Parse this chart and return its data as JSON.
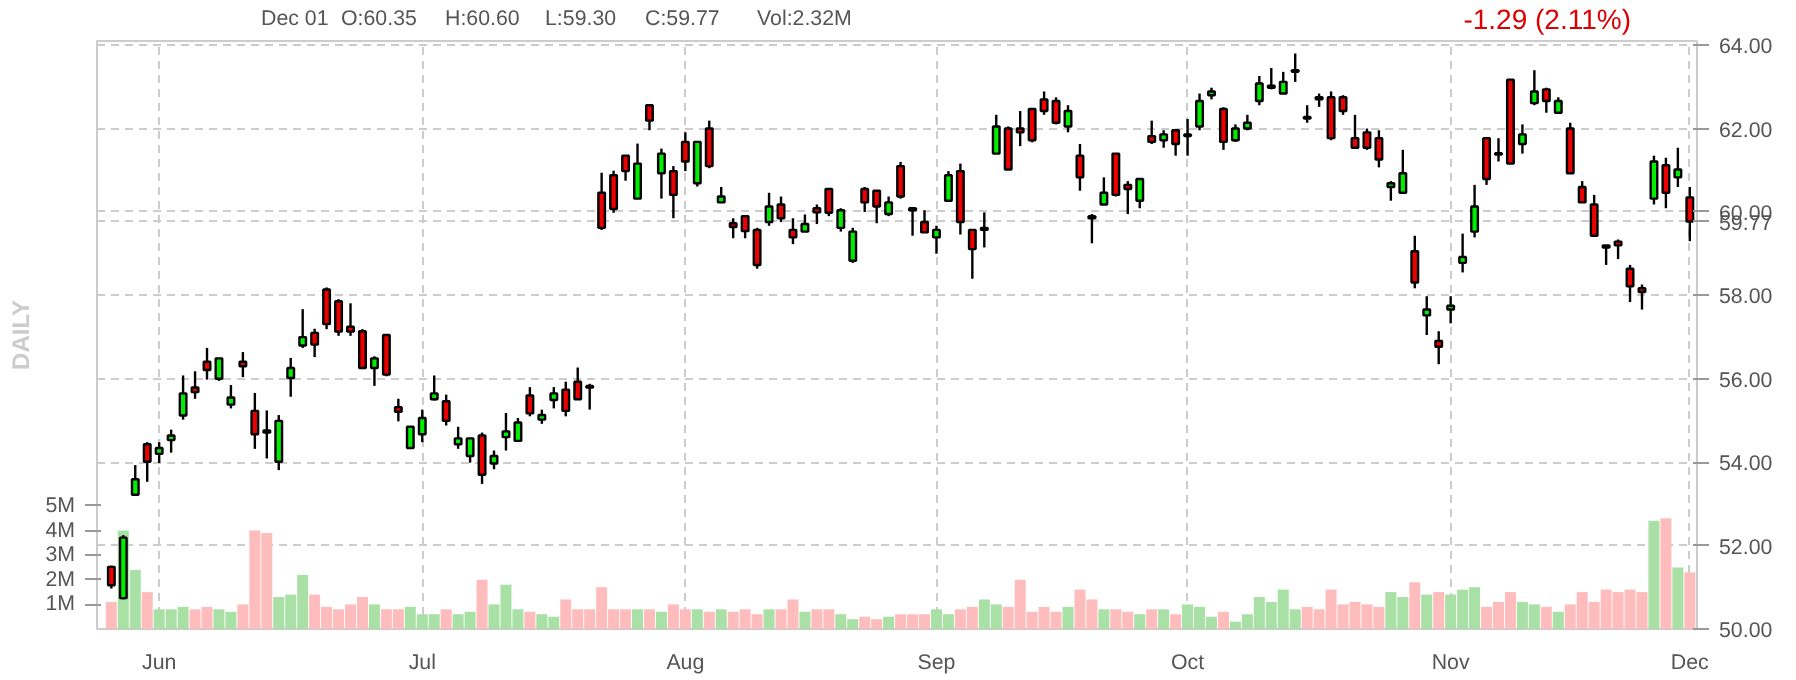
{
  "chart_data": {
    "type": "candlestick",
    "grid": true,
    "annotations": [
      "Dec 01",
      "O:60.35",
      "H:60.60",
      "L:59.30",
      "C:59.77",
      "Vol:2.32M",
      "-1.29 (2.11%)",
      "DAILY"
    ],
    "categories": [
      null,
      null,
      null,
      null,
      "Jun",
      null,
      null,
      null,
      null,
      null,
      null,
      null,
      null,
      null,
      null,
      null,
      null,
      null,
      null,
      null,
      null,
      null,
      null,
      null,
      null,
      null,
      "Jul",
      null,
      null,
      null,
      null,
      null,
      null,
      null,
      null,
      null,
      null,
      null,
      null,
      null,
      null,
      null,
      null,
      null,
      null,
      null,
      null,
      null,
      "Aug",
      null,
      null,
      null,
      null,
      null,
      null,
      null,
      null,
      null,
      null,
      null,
      null,
      null,
      null,
      null,
      null,
      null,
      null,
      null,
      null,
      "Sep",
      null,
      null,
      null,
      null,
      null,
      null,
      null,
      null,
      null,
      null,
      null,
      null,
      null,
      null,
      null,
      null,
      null,
      null,
      null,
      null,
      "Oct",
      null,
      null,
      null,
      null,
      null,
      null,
      null,
      null,
      null,
      null,
      null,
      null,
      null,
      null,
      null,
      null,
      null,
      null,
      null,
      null,
      null,
      "Nov",
      null,
      null,
      null,
      null,
      null,
      null,
      null,
      null,
      null,
      null,
      null,
      null,
      null,
      null,
      null,
      null,
      null,
      null,
      null,
      "Dec"
    ],
    "ylim": [
      50,
      64.1
    ],
    "yticks": [
      {
        "value": 50,
        "label": "50.00"
      },
      {
        "value": 52,
        "label": "52.00"
      },
      {
        "value": 54,
        "label": "54.00"
      },
      {
        "value": 56,
        "label": "56.00"
      },
      {
        "value": 58,
        "label": "58.00"
      },
      {
        "value": 59.77,
        "label": "59.77"
      },
      {
        "value": 60,
        "label": "60.00"
      },
      {
        "value": 62,
        "label": "62.00"
      },
      {
        "value": 64,
        "label": "64.00"
      }
    ],
    "y2lim": [
      0,
      23.9
    ],
    "y2ticks": [
      {
        "value": 1,
        "label": "1M"
      },
      {
        "value": 2,
        "label": "2M"
      },
      {
        "value": 3,
        "label": "3M"
      },
      {
        "value": 4,
        "label": "4M"
      },
      {
        "value": 5,
        "label": "5M"
      }
    ],
    "series": [
      {
        "type": "bar",
        "axis": "y2",
        "values": [
          1.1,
          4.0,
          2.4,
          1.5,
          0.8,
          0.8,
          0.9,
          0.8,
          0.9,
          0.8,
          0.7,
          1.0,
          4.0,
          3.9,
          1.3,
          1.4,
          2.2,
          1.4,
          0.9,
          0.8,
          1.0,
          1.3,
          1.0,
          0.8,
          0.8,
          0.9,
          0.6,
          0.6,
          0.8,
          0.6,
          0.7,
          2.0,
          1.0,
          1.8,
          0.8,
          0.7,
          0.6,
          0.5,
          1.2,
          0.8,
          0.8,
          1.7,
          0.8,
          0.8,
          0.8,
          0.8,
          0.7,
          1.0,
          0.8,
          0.8,
          0.7,
          0.8,
          0.7,
          0.8,
          0.6,
          0.8,
          0.8,
          1.2,
          0.7,
          0.8,
          0.8,
          0.6,
          0.4,
          0.5,
          0.4,
          0.5,
          0.6,
          0.6,
          0.6,
          0.8,
          0.6,
          0.8,
          0.9,
          1.2,
          1.0,
          0.9,
          2.0,
          0.7,
          0.9,
          0.7,
          0.9,
          1.6,
          1.2,
          0.8,
          0.8,
          0.7,
          0.6,
          0.8,
          0.8,
          0.6,
          1.0,
          0.9,
          0.5,
          0.7,
          0.3,
          0.6,
          1.3,
          1.1,
          1.6,
          0.8,
          0.9,
          0.8,
          1.6,
          1.0,
          1.1,
          1.0,
          0.9,
          1.5,
          1.3,
          1.9,
          1.4,
          1.5,
          1.4,
          1.6,
          1.7,
          0.9,
          1.1,
          1.5,
          1.1,
          1.0,
          0.9,
          0.7,
          1.0,
          1.5,
          1.1,
          1.6,
          1.5,
          1.6,
          1.5,
          4.4,
          4.5,
          2.5,
          2.3
        ],
        "colors": [
          "#ffbcbc",
          "#a8e0a5",
          "#a8e0a5",
          "#ffbcbc",
          "#a8e0a5",
          "#a8e0a5",
          "#a8e0a5",
          "#ffbcbc",
          "#ffbcbc",
          "#a8e0a5",
          "#a8e0a5",
          "#ffbcbc",
          "#ffbcbc",
          "#ffbcbc",
          "#a8e0a5",
          "#a8e0a5",
          "#a8e0a5",
          "#ffbcbc",
          "#ffbcbc",
          "#ffbcbc",
          "#ffbcbc",
          "#ffbcbc",
          "#a8e0a5",
          "#ffbcbc",
          "#ffbcbc",
          "#a8e0a5",
          "#a8e0a5",
          "#a8e0a5",
          "#ffbcbc",
          "#a8e0a5",
          "#a8e0a5",
          "#ffbcbc",
          "#a8e0a5",
          "#a8e0a5",
          "#a8e0a5",
          "#ffbcbc",
          "#a8e0a5",
          "#a8e0a5",
          "#ffbcbc",
          "#ffbcbc",
          "#ffbcbc",
          "#ffbcbc",
          "#ffbcbc",
          "#ffbcbc",
          "#a8e0a5",
          "#ffbcbc",
          "#a8e0a5",
          "#ffbcbc",
          "#ffbcbc",
          "#a8e0a5",
          "#ffbcbc",
          "#a8e0a5",
          "#ffbcbc",
          "#ffbcbc",
          "#ffbcbc",
          "#a8e0a5",
          "#ffbcbc",
          "#ffbcbc",
          "#a8e0a5",
          "#ffbcbc",
          "#ffbcbc",
          "#a8e0a5",
          "#a8e0a5",
          "#ffbcbc",
          "#ffbcbc",
          "#a8e0a5",
          "#ffbcbc",
          "#ffbcbc",
          "#ffbcbc",
          "#a8e0a5",
          "#a8e0a5",
          "#ffbcbc",
          "#ffbcbc",
          "#a8e0a5",
          "#a8e0a5",
          "#ffbcbc",
          "#ffbcbc",
          "#ffbcbc",
          "#ffbcbc",
          "#ffbcbc",
          "#a8e0a5",
          "#ffbcbc",
          "#ffbcbc",
          "#a8e0a5",
          "#ffbcbc",
          "#ffbcbc",
          "#a8e0a5",
          "#ffbcbc",
          "#a8e0a5",
          "#ffbcbc",
          "#a8e0a5",
          "#a8e0a5",
          "#a8e0a5",
          "#ffbcbc",
          "#a8e0a5",
          "#a8e0a5",
          "#a8e0a5",
          "#a8e0a5",
          "#a8e0a5",
          "#a8e0a5",
          "#ffbcbc",
          "#ffbcbc",
          "#ffbcbc",
          "#ffbcbc",
          "#ffbcbc",
          "#ffbcbc",
          "#ffbcbc",
          "#a8e0a5",
          "#a8e0a5",
          "#ffbcbc",
          "#a8e0a5",
          "#ffbcbc",
          "#a8e0a5",
          "#a8e0a5",
          "#a8e0a5",
          "#ffbcbc",
          "#ffbcbc",
          "#ffbcbc",
          "#a8e0a5",
          "#a8e0a5",
          "#ffbcbc",
          "#a8e0a5",
          "#ffbcbc",
          "#ffbcbc",
          "#ffbcbc",
          "#ffbcbc",
          "#ffbcbc",
          "#ffbcbc",
          "#ffbcbc",
          "#a8e0a5",
          "#ffbcbc",
          "#a8e0a5",
          "#ffbcbc"
        ]
      },
      {
        "ohlc": [
          [
            51.49,
            51.52,
            50.97,
            51.05
          ],
          [
            50.74,
            52.25,
            50.71,
            52.19
          ],
          [
            53.22,
            53.93,
            53.22,
            53.59
          ],
          [
            54.43,
            54.48,
            53.53,
            54.01
          ],
          [
            54.2,
            54.48,
            53.98,
            54.34
          ],
          [
            54.53,
            54.78,
            54.23,
            54.64
          ],
          [
            55.12,
            56.08,
            55.02,
            55.65
          ],
          [
            55.79,
            56.18,
            55.52,
            55.68
          ],
          [
            56.41,
            56.74,
            55.98,
            56.21
          ],
          [
            56.0,
            56.49,
            55.95,
            56.49
          ],
          [
            55.38,
            55.85,
            55.29,
            55.55
          ],
          [
            56.41,
            56.64,
            56.04,
            56.3
          ],
          [
            55.23,
            55.66,
            54.32,
            54.67
          ],
          [
            54.76,
            55.24,
            54.09,
            54.71
          ],
          [
            54.01,
            55.13,
            53.81,
            54.99
          ],
          [
            56.02,
            56.5,
            55.57,
            56.26
          ],
          [
            56.8,
            57.67,
            56.74,
            57.0
          ],
          [
            57.1,
            57.2,
            56.52,
            56.82
          ],
          [
            58.14,
            58.19,
            57.19,
            57.31
          ],
          [
            57.86,
            57.91,
            57.03,
            57.13
          ],
          [
            57.25,
            57.81,
            57.03,
            57.13
          ],
          [
            57.14,
            57.19,
            56.24,
            56.26
          ],
          [
            56.26,
            56.54,
            55.83,
            56.49
          ],
          [
            57.05,
            57.05,
            56.06,
            56.1
          ],
          [
            55.32,
            55.52,
            54.98,
            55.21
          ],
          [
            54.34,
            54.85,
            54.32,
            54.85
          ],
          [
            54.67,
            55.26,
            54.48,
            55.06
          ],
          [
            55.51,
            56.08,
            55.48,
            55.65
          ],
          [
            55.46,
            55.62,
            54.88,
            54.99
          ],
          [
            54.43,
            54.85,
            54.32,
            54.57
          ],
          [
            54.15,
            54.57,
            53.99,
            54.57
          ],
          [
            54.64,
            54.71,
            53.48,
            53.7
          ],
          [
            53.97,
            54.28,
            53.83,
            54.15
          ],
          [
            54.6,
            55.18,
            54.28,
            54.74
          ],
          [
            54.51,
            55.06,
            54.51,
            54.95
          ],
          [
            55.6,
            55.8,
            55.1,
            55.17
          ],
          [
            55.02,
            55.26,
            54.92,
            55.13
          ],
          [
            55.49,
            55.8,
            55.29,
            55.65
          ],
          [
            55.74,
            55.93,
            55.1,
            55.23
          ],
          [
            55.93,
            56.27,
            55.51,
            55.51
          ],
          [
            55.83,
            55.88,
            55.26,
            55.79
          ],
          [
            60.46,
            60.94,
            59.57,
            59.62
          ],
          [
            60.88,
            60.99,
            59.98,
            60.07
          ],
          [
            61.35,
            61.35,
            60.75,
            60.98
          ],
          [
            60.32,
            61.64,
            60.32,
            61.16
          ],
          [
            62.56,
            62.56,
            61.96,
            62.19
          ],
          [
            60.93,
            61.52,
            60.32,
            61.4
          ],
          [
            60.98,
            61.1,
            59.85,
            60.41
          ],
          [
            61.68,
            61.91,
            60.98,
            61.21
          ],
          [
            60.69,
            61.68,
            60.61,
            61.68
          ],
          [
            62.0,
            62.19,
            61.05,
            61.1
          ],
          [
            60.23,
            60.6,
            60.23,
            60.37
          ],
          [
            59.73,
            59.85,
            59.37,
            59.64
          ],
          [
            59.9,
            59.9,
            59.37,
            59.54
          ],
          [
            59.57,
            59.62,
            58.64,
            58.73
          ],
          [
            59.76,
            60.46,
            59.67,
            60.13
          ],
          [
            60.18,
            60.37,
            59.76,
            59.85
          ],
          [
            59.57,
            59.85,
            59.23,
            59.39
          ],
          [
            59.53,
            59.94,
            59.53,
            59.71
          ],
          [
            60.09,
            60.18,
            59.71,
            59.99
          ],
          [
            60.55,
            60.55,
            59.9,
            59.98
          ],
          [
            59.62,
            60.09,
            59.53,
            60.04
          ],
          [
            58.83,
            59.62,
            58.78,
            59.53
          ],
          [
            60.55,
            60.6,
            60.0,
            60.23
          ],
          [
            60.51,
            60.51,
            59.73,
            60.13
          ],
          [
            59.95,
            60.37,
            59.9,
            60.23
          ],
          [
            61.1,
            61.2,
            60.32,
            60.37
          ],
          [
            60.09,
            60.09,
            59.43,
            60.04
          ],
          [
            59.76,
            60.04,
            59.5,
            59.51
          ],
          [
            59.39,
            59.67,
            59.0,
            59.57
          ],
          [
            60.27,
            60.98,
            60.27,
            60.88
          ],
          [
            60.98,
            61.16,
            59.46,
            59.76
          ],
          [
            59.57,
            59.57,
            58.4,
            59.11
          ],
          [
            59.57,
            59.99,
            59.15,
            59.62
          ],
          [
            61.4,
            62.33,
            61.4,
            62.05
          ],
          [
            62.0,
            62.05,
            61.02,
            61.02
          ],
          [
            62.0,
            62.42,
            61.58,
            61.91
          ],
          [
            62.47,
            62.47,
            61.67,
            61.72
          ],
          [
            62.7,
            62.89,
            62.33,
            62.42
          ],
          [
            62.66,
            62.75,
            62.1,
            62.14
          ],
          [
            62.05,
            62.56,
            61.91,
            62.42
          ],
          [
            61.35,
            61.63,
            60.51,
            60.83
          ],
          [
            59.9,
            59.95,
            59.25,
            59.85
          ],
          [
            60.18,
            60.83,
            60.18,
            60.46
          ],
          [
            61.4,
            61.4,
            60.37,
            60.41
          ],
          [
            60.65,
            60.74,
            59.95,
            60.55
          ],
          [
            60.27,
            60.79,
            60.09,
            60.79
          ],
          [
            61.82,
            62.19,
            61.63,
            61.68
          ],
          [
            61.72,
            61.96,
            61.54,
            61.86
          ],
          [
            61.96,
            61.96,
            61.35,
            61.63
          ],
          [
            61.82,
            62.23,
            61.35,
            61.86
          ],
          [
            62.05,
            62.84,
            61.96,
            62.66
          ],
          [
            62.8,
            62.98,
            62.7,
            62.89
          ],
          [
            62.47,
            62.51,
            61.49,
            61.68
          ],
          [
            61.72,
            62.1,
            61.68,
            62.0
          ],
          [
            62.0,
            62.33,
            61.96,
            62.14
          ],
          [
            62.66,
            63.26,
            62.56,
            63.08
          ],
          [
            62.98,
            63.45,
            62.94,
            63.03
          ],
          [
            62.84,
            63.36,
            62.84,
            63.12
          ],
          [
            63.36,
            63.8,
            63.12,
            63.4
          ],
          [
            62.28,
            62.56,
            62.14,
            62.24
          ],
          [
            62.75,
            62.84,
            62.52,
            62.7
          ],
          [
            62.75,
            62.89,
            61.72,
            61.77
          ],
          [
            62.75,
            62.8,
            62.33,
            62.42
          ],
          [
            61.77,
            62.33,
            61.54,
            61.54
          ],
          [
            61.91,
            62.0,
            61.49,
            61.54
          ],
          [
            61.77,
            61.96,
            61.07,
            61.26
          ],
          [
            60.6,
            60.74,
            60.27,
            60.69
          ],
          [
            60.46,
            61.49,
            60.46,
            60.93
          ],
          [
            59.06,
            59.43,
            58.17,
            58.31
          ],
          [
            57.52,
            57.98,
            57.05,
            57.66
          ],
          [
            56.91,
            57.14,
            56.35,
            56.77
          ],
          [
            57.66,
            57.98,
            57.33,
            57.75
          ],
          [
            58.78,
            59.48,
            58.55,
            58.92
          ],
          [
            59.53,
            60.65,
            59.39,
            60.13
          ],
          [
            61.77,
            61.77,
            60.65,
            60.79
          ],
          [
            61.41,
            61.77,
            61.21,
            61.38
          ],
          [
            63.17,
            63.17,
            61.16,
            61.16
          ],
          [
            61.63,
            62.1,
            61.4,
            61.86
          ],
          [
            62.61,
            63.4,
            62.56,
            62.89
          ],
          [
            62.94,
            62.98,
            62.38,
            62.66
          ],
          [
            62.38,
            62.75,
            62.38,
            62.66
          ],
          [
            62.0,
            62.14,
            60.93,
            60.93
          ],
          [
            60.6,
            60.74,
            60.23,
            60.23
          ],
          [
            60.18,
            60.41,
            59.43,
            59.43
          ],
          [
            59.2,
            59.2,
            58.73,
            59.15
          ],
          [
            59.29,
            59.34,
            58.87,
            59.2
          ],
          [
            58.64,
            58.73,
            57.84,
            58.22
          ],
          [
            58.17,
            58.26,
            57.66,
            58.08
          ],
          [
            60.32,
            61.35,
            60.18,
            61.21
          ],
          [
            61.12,
            61.3,
            60.09,
            60.46
          ],
          [
            60.83,
            61.54,
            60.6,
            61.02
          ],
          [
            60.35,
            60.6,
            59.3,
            59.77
          ]
        ],
        "colors": [
          "#ee0000",
          "#00ee00",
          "#00ee00",
          "#ee0000",
          "#00ee00",
          "#00ee00",
          "#00ee00",
          "#ee0000",
          "#ee0000",
          "#00ee00",
          "#00ee00",
          "#ee0000",
          "#ee0000",
          "#ee0000",
          "#00ee00",
          "#00ee00",
          "#00ee00",
          "#ee0000",
          "#ee0000",
          "#ee0000",
          "#ee0000",
          "#ee0000",
          "#00ee00",
          "#ee0000",
          "#ee0000",
          "#00ee00",
          "#00ee00",
          "#00ee00",
          "#ee0000",
          "#00ee00",
          "#00ee00",
          "#ee0000",
          "#00ee00",
          "#00ee00",
          "#00ee00",
          "#ee0000",
          "#00ee00",
          "#00ee00",
          "#ee0000",
          "#ee0000",
          "#ee0000",
          "#ee0000",
          "#ee0000",
          "#ee0000",
          "#00ee00",
          "#ee0000",
          "#00ee00",
          "#ee0000",
          "#ee0000",
          "#00ee00",
          "#ee0000",
          "#00ee00",
          "#ee0000",
          "#ee0000",
          "#ee0000",
          "#00ee00",
          "#ee0000",
          "#ee0000",
          "#00ee00",
          "#ee0000",
          "#ee0000",
          "#00ee00",
          "#00ee00",
          "#ee0000",
          "#ee0000",
          "#00ee00",
          "#ee0000",
          "#ee0000",
          "#ee0000",
          "#00ee00",
          "#00ee00",
          "#ee0000",
          "#ee0000",
          "#00ee00",
          "#00ee00",
          "#ee0000",
          "#ee0000",
          "#ee0000",
          "#ee0000",
          "#ee0000",
          "#00ee00",
          "#ee0000",
          "#ee0000",
          "#00ee00",
          "#ee0000",
          "#ee0000",
          "#00ee00",
          "#ee0000",
          "#00ee00",
          "#ee0000",
          "#00ee00",
          "#00ee00",
          "#00ee00",
          "#ee0000",
          "#00ee00",
          "#00ee00",
          "#00ee00",
          "#00ee00",
          "#00ee00",
          "#00ee00",
          "#ee0000",
          "#ee0000",
          "#ee0000",
          "#ee0000",
          "#ee0000",
          "#ee0000",
          "#ee0000",
          "#00ee00",
          "#00ee00",
          "#ee0000",
          "#00ee00",
          "#ee0000",
          "#00ee00",
          "#00ee00",
          "#00ee00",
          "#ee0000",
          "#ee0000",
          "#ee0000",
          "#00ee00",
          "#00ee00",
          "#ee0000",
          "#00ee00",
          "#ee0000",
          "#ee0000",
          "#ee0000",
          "#ee0000",
          "#ee0000",
          "#ee0000",
          "#ee0000",
          "#00ee00",
          "#ee0000",
          "#00ee00",
          "#ee0000"
        ]
      }
    ]
  }
}
